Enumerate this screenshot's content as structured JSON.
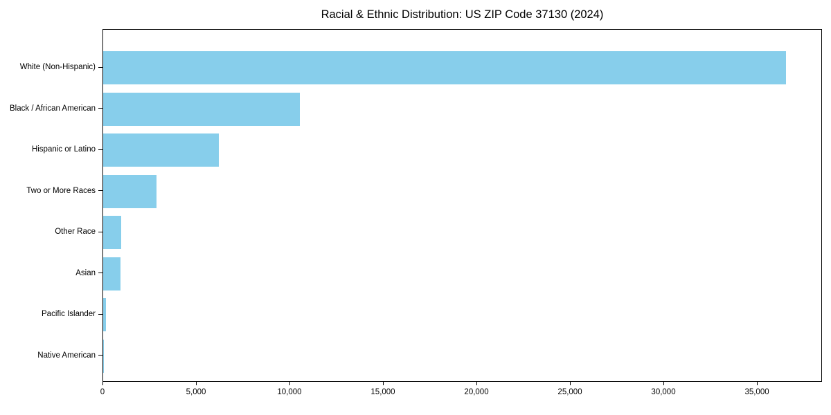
{
  "chart_data": {
    "type": "bar",
    "orientation": "horizontal",
    "title": "Racial & Ethnic Distribution: US ZIP Code 37130 (2024)",
    "categories": [
      "White (Non-Hispanic)",
      "Black / African American",
      "Hispanic or Latino",
      "Two or More Races",
      "Other Race",
      "Asian",
      "Pacific Islander",
      "Native American"
    ],
    "values": [
      36600,
      10540,
      6180,
      2850,
      970,
      915,
      140,
      20
    ],
    "xlabel": "",
    "ylabel": "",
    "xlim": [
      0,
      38480
    ],
    "xticks": {
      "values": [
        0,
        5000,
        10000,
        15000,
        20000,
        25000,
        30000,
        35000
      ],
      "labels": [
        "0",
        "5,000",
        "10,000",
        "15,000",
        "20,000",
        "25,000",
        "30,000",
        "35,000"
      ]
    },
    "bar_color": "#87CEEB",
    "grid": false,
    "legend": false,
    "axis_color": "#000000",
    "text_color": "#000000"
  }
}
